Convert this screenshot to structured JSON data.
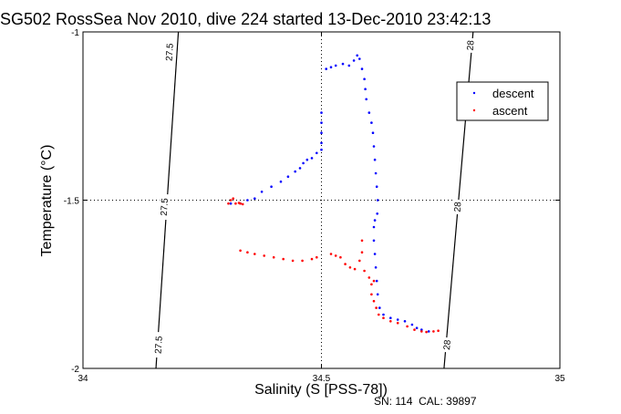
{
  "chart_data": {
    "type": "scatter",
    "title": "SG502 RossSea Nov 2010, dive 224 started 13-Dec-2010 23:42:13",
    "xlabel": "Salinity (S [PSS-78])",
    "ylabel": "Temperature (°C)",
    "xlim": [
      34,
      35
    ],
    "ylim": [
      -2,
      -1
    ],
    "x_ticks": [
      34,
      34.5,
      35
    ],
    "y_ticks": [
      -2,
      -1.5,
      -1
    ],
    "x_tick_labels": [
      "34",
      "34.5",
      "35"
    ],
    "y_tick_labels": [
      "-2",
      "-1.5",
      "-1"
    ],
    "grid": "dotted lines at x=34.5 and y=-1.5",
    "legend_position": "top-right",
    "footer_text": "SN: 114  CAL: 39897",
    "density_contours": [
      {
        "label": "27.5",
        "points": [
          [
            34.153,
            -2
          ],
          [
            34.2,
            -1
          ]
        ],
        "label_positions": [
          [
            34.181,
            -1.06
          ],
          [
            34.17,
            -1.52
          ],
          [
            34.158,
            -1.93
          ]
        ]
      },
      {
        "label": "28",
        "points": [
          [
            34.757,
            -2
          ],
          [
            34.818,
            -1
          ]
        ],
        "label_positions": [
          [
            34.812,
            -1.04
          ],
          [
            34.785,
            -1.52
          ],
          [
            34.763,
            -1.93
          ]
        ]
      }
    ],
    "series": [
      {
        "name": "descent",
        "color": "#0000ff",
        "points": [
          [
            34.31,
            -1.51
          ],
          [
            34.33,
            -1.51
          ],
          [
            34.345,
            -1.5
          ],
          [
            34.36,
            -1.495
          ],
          [
            34.375,
            -1.475
          ],
          [
            34.395,
            -1.46
          ],
          [
            34.415,
            -1.445
          ],
          [
            34.43,
            -1.43
          ],
          [
            34.445,
            -1.415
          ],
          [
            34.455,
            -1.405
          ],
          [
            34.462,
            -1.39
          ],
          [
            34.47,
            -1.38
          ],
          [
            34.48,
            -1.375
          ],
          [
            34.49,
            -1.36
          ],
          [
            34.5,
            -1.35
          ],
          [
            34.5,
            -1.33
          ],
          [
            34.5,
            -1.3
          ],
          [
            34.5,
            -1.27
          ],
          [
            34.5,
            -1.24
          ],
          [
            34.51,
            -1.11
          ],
          [
            34.52,
            -1.105
          ],
          [
            34.53,
            -1.1
          ],
          [
            34.545,
            -1.095
          ],
          [
            34.558,
            -1.1
          ],
          [
            34.568,
            -1.085
          ],
          [
            34.575,
            -1.07
          ],
          [
            34.58,
            -1.08
          ],
          [
            34.585,
            -1.11
          ],
          [
            34.59,
            -1.14
          ],
          [
            34.592,
            -1.17
          ],
          [
            34.594,
            -1.2
          ],
          [
            34.6,
            -1.24
          ],
          [
            34.605,
            -1.27
          ],
          [
            34.608,
            -1.3
          ],
          [
            34.61,
            -1.34
          ],
          [
            34.612,
            -1.38
          ],
          [
            34.614,
            -1.42
          ],
          [
            34.616,
            -1.46
          ],
          [
            34.618,
            -1.5
          ],
          [
            34.617,
            -1.54
          ],
          [
            34.612,
            -1.56
          ],
          [
            34.61,
            -1.58
          ],
          [
            34.61,
            -1.62
          ],
          [
            34.612,
            -1.66
          ],
          [
            34.614,
            -1.7
          ],
          [
            34.616,
            -1.74
          ],
          [
            34.618,
            -1.78
          ],
          [
            34.622,
            -1.82
          ],
          [
            34.63,
            -1.84
          ],
          [
            34.645,
            -1.85
          ],
          [
            34.66,
            -1.855
          ],
          [
            34.675,
            -1.86
          ],
          [
            34.69,
            -1.87
          ],
          [
            34.7,
            -1.88
          ],
          [
            34.71,
            -1.885
          ],
          [
            34.725,
            -1.89
          ]
        ]
      },
      {
        "name": "ascent",
        "color": "#ff0000",
        "points": [
          [
            34.305,
            -1.51
          ],
          [
            34.31,
            -1.5
          ],
          [
            34.315,
            -1.495
          ],
          [
            34.32,
            -1.51
          ],
          [
            34.327,
            -1.508
          ],
          [
            34.33,
            -1.51
          ],
          [
            34.335,
            -1.512
          ],
          [
            34.33,
            -1.65
          ],
          [
            34.345,
            -1.655
          ],
          [
            34.36,
            -1.66
          ],
          [
            34.38,
            -1.665
          ],
          [
            34.4,
            -1.67
          ],
          [
            34.42,
            -1.675
          ],
          [
            34.44,
            -1.68
          ],
          [
            34.46,
            -1.68
          ],
          [
            34.48,
            -1.675
          ],
          [
            34.49,
            -1.67
          ],
          [
            34.52,
            -1.66
          ],
          [
            34.53,
            -1.665
          ],
          [
            34.54,
            -1.67
          ],
          [
            34.55,
            -1.69
          ],
          [
            34.56,
            -1.7
          ],
          [
            34.57,
            -1.705
          ],
          [
            34.58,
            -1.68
          ],
          [
            34.585,
            -1.655
          ],
          [
            34.585,
            -1.62
          ],
          [
            34.59,
            -1.71
          ],
          [
            34.6,
            -1.73
          ],
          [
            34.605,
            -1.75
          ],
          [
            34.61,
            -1.74
          ],
          [
            34.605,
            -1.78
          ],
          [
            34.61,
            -1.8
          ],
          [
            34.615,
            -1.82
          ],
          [
            34.62,
            -1.84
          ],
          [
            34.63,
            -1.85
          ],
          [
            34.645,
            -1.86
          ],
          [
            34.66,
            -1.865
          ],
          [
            34.68,
            -1.875
          ],
          [
            34.695,
            -1.885
          ],
          [
            34.71,
            -1.89
          ],
          [
            34.72,
            -1.892
          ],
          [
            34.735,
            -1.89
          ],
          [
            34.745,
            -1.888
          ]
        ]
      }
    ]
  }
}
